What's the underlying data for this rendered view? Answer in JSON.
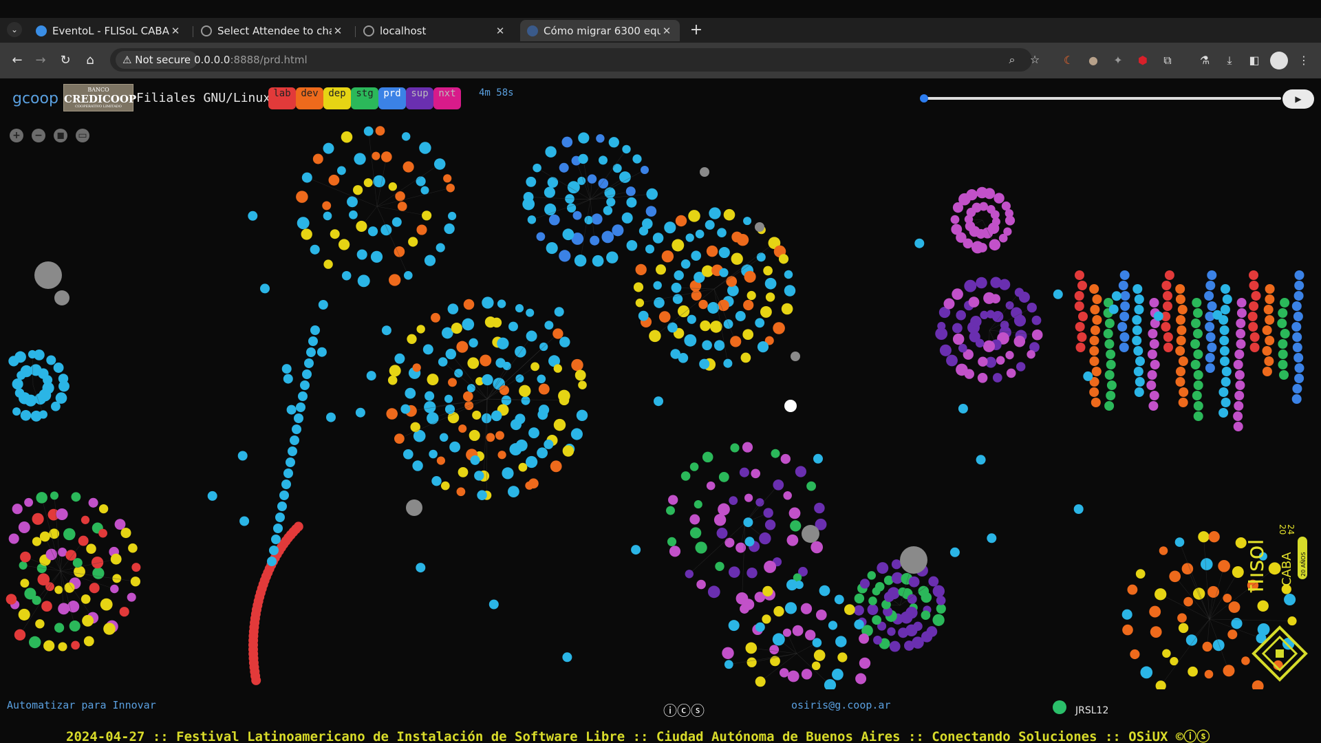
{
  "browser": {
    "tabs": [
      {
        "title": "EventoL - FLISoL CABA",
        "favicon_color": "#3a8ee6",
        "active": false
      },
      {
        "title": "Select Attendee to cha",
        "favicon_color": "#9a9a9a",
        "active": false
      },
      {
        "title": "localhost",
        "favicon_color": "#9a9a9a",
        "active": false
      },
      {
        "title": "Cómo migrar 6300 equ",
        "favicon_color": "#3a5a8a",
        "active": true
      }
    ],
    "new_tab": "+",
    "security_label": "Not secure",
    "url_host": "0.0.0.0",
    "url_rest": ":8888/prd.html"
  },
  "header": {
    "brand": "gcoop",
    "bank_line1": "BANCO",
    "bank_line2": "CREDICOOP",
    "bank_line3": "COOPERATIVO LIMITADO",
    "title": "Filiales GNU/Linux",
    "envs": [
      {
        "label": "lab",
        "bg": "#e23a3a",
        "fg": "#222"
      },
      {
        "label": "dev",
        "bg": "#ee6a1c",
        "fg": "#222"
      },
      {
        "label": "dep",
        "bg": "#e6d414",
        "fg": "#222"
      },
      {
        "label": "stg",
        "bg": "#2bb85a",
        "fg": "#222"
      },
      {
        "label": "prd",
        "bg": "#3b82e6",
        "fg": "#fff"
      },
      {
        "label": "sup",
        "bg": "#6a2fb0",
        "fg": "#bbb"
      },
      {
        "label": "nxt",
        "bg": "#d81b8a",
        "fg": "#bbb"
      }
    ],
    "timer": "4m 58s",
    "progress": 0.0,
    "play_icon": "▶"
  },
  "controls": [
    "+",
    "−",
    "◼",
    "▭"
  ],
  "footer": {
    "slogan": "Automatizar para Innovar",
    "license_icons": "ⓘⓒⓢ",
    "email": "osiris@g.coop.ar",
    "jrsl": "JRSL12",
    "ticker": "2024-04-27 :: Festival Latinoamericano de Instalación de Software Libre :: Ciudad Autónoma de Buenos Aires :: Conectando Soluciones :: OSiUX ©ⓘⓢ"
  },
  "flisol": {
    "name": "flisol",
    "city": "CABA",
    "year_top": "20",
    "year_bottom": "24",
    "badge": "20 AÑOS"
  },
  "colors": {
    "accent": "#5aa0e0",
    "ticker": "#d9dc2a",
    "bg": "#0a0a0a"
  }
}
